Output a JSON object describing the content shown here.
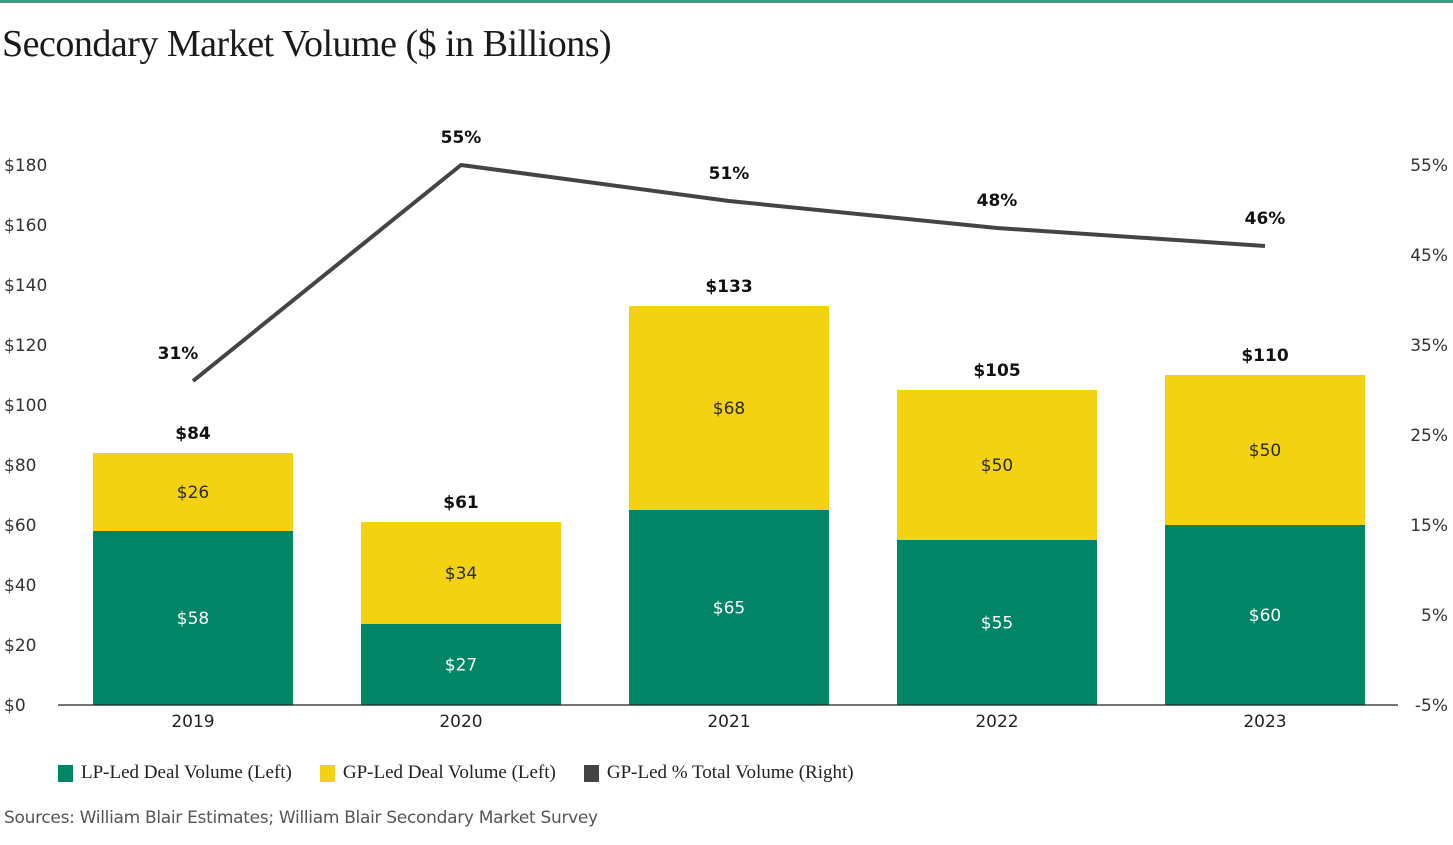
{
  "chart_data": {
    "type": "bar",
    "stacked": true,
    "title": "Secondary Market Volume ($ in Billions)",
    "categories": [
      "2019",
      "2020",
      "2021",
      "2022",
      "2023"
    ],
    "series": [
      {
        "name": "LP-Led Deal Volume (Left)",
        "axis": "left",
        "kind": "bar",
        "color": "#008566",
        "values": [
          58,
          27,
          65,
          55,
          60
        ],
        "labels": [
          "$58",
          "$27",
          "$65",
          "$55",
          "$60"
        ]
      },
      {
        "name": "GP-Led Deal Volume (Left)",
        "axis": "left",
        "kind": "bar",
        "color": "#f2d211",
        "values": [
          26,
          34,
          68,
          50,
          50
        ],
        "labels": [
          "$26",
          "$34",
          "$68",
          "$50",
          "$50"
        ]
      },
      {
        "name": "GP-Led % Total Volume (Right)",
        "axis": "right",
        "kind": "line",
        "color": "#444444",
        "values": [
          31,
          55,
          51,
          48,
          46
        ],
        "labels": [
          "31%",
          "55%",
          "51%",
          "48%",
          "46%"
        ]
      }
    ],
    "totals": [
      84,
      61,
      133,
      105,
      110
    ],
    "total_labels": [
      "$84",
      "$61",
      "$133",
      "$105",
      "$110"
    ],
    "left_axis": {
      "ylim": [
        0,
        180
      ],
      "ticks": [
        0,
        20,
        40,
        60,
        80,
        100,
        120,
        140,
        160,
        180
      ],
      "tick_labels": [
        "$0",
        "$20",
        "$40",
        "$60",
        "$80",
        "$100",
        "$120",
        "$140",
        "$160",
        "$180"
      ]
    },
    "right_axis": {
      "ylim": [
        -5,
        55
      ],
      "ticks": [
        -5,
        5,
        15,
        25,
        35,
        45,
        55
      ],
      "tick_labels": [
        "-5%",
        "5%",
        "15%",
        "25%",
        "35%",
        "45%",
        "55%"
      ]
    },
    "xlabel": "",
    "ylabel": "",
    "grid": false,
    "legend_position": "bottom-left"
  },
  "legend": [
    {
      "label": "LP-Led Deal Volume (Left)",
      "color": "#008566"
    },
    {
      "label": "GP-Led Deal Volume (Left)",
      "color": "#f2d211"
    },
    {
      "label": "GP-Led % Total Volume (Right)",
      "color": "#444444"
    }
  ],
  "source": "Sources: William Blair Estimates; William Blair Secondary Market Survey",
  "accent_color": "#3f9a86"
}
